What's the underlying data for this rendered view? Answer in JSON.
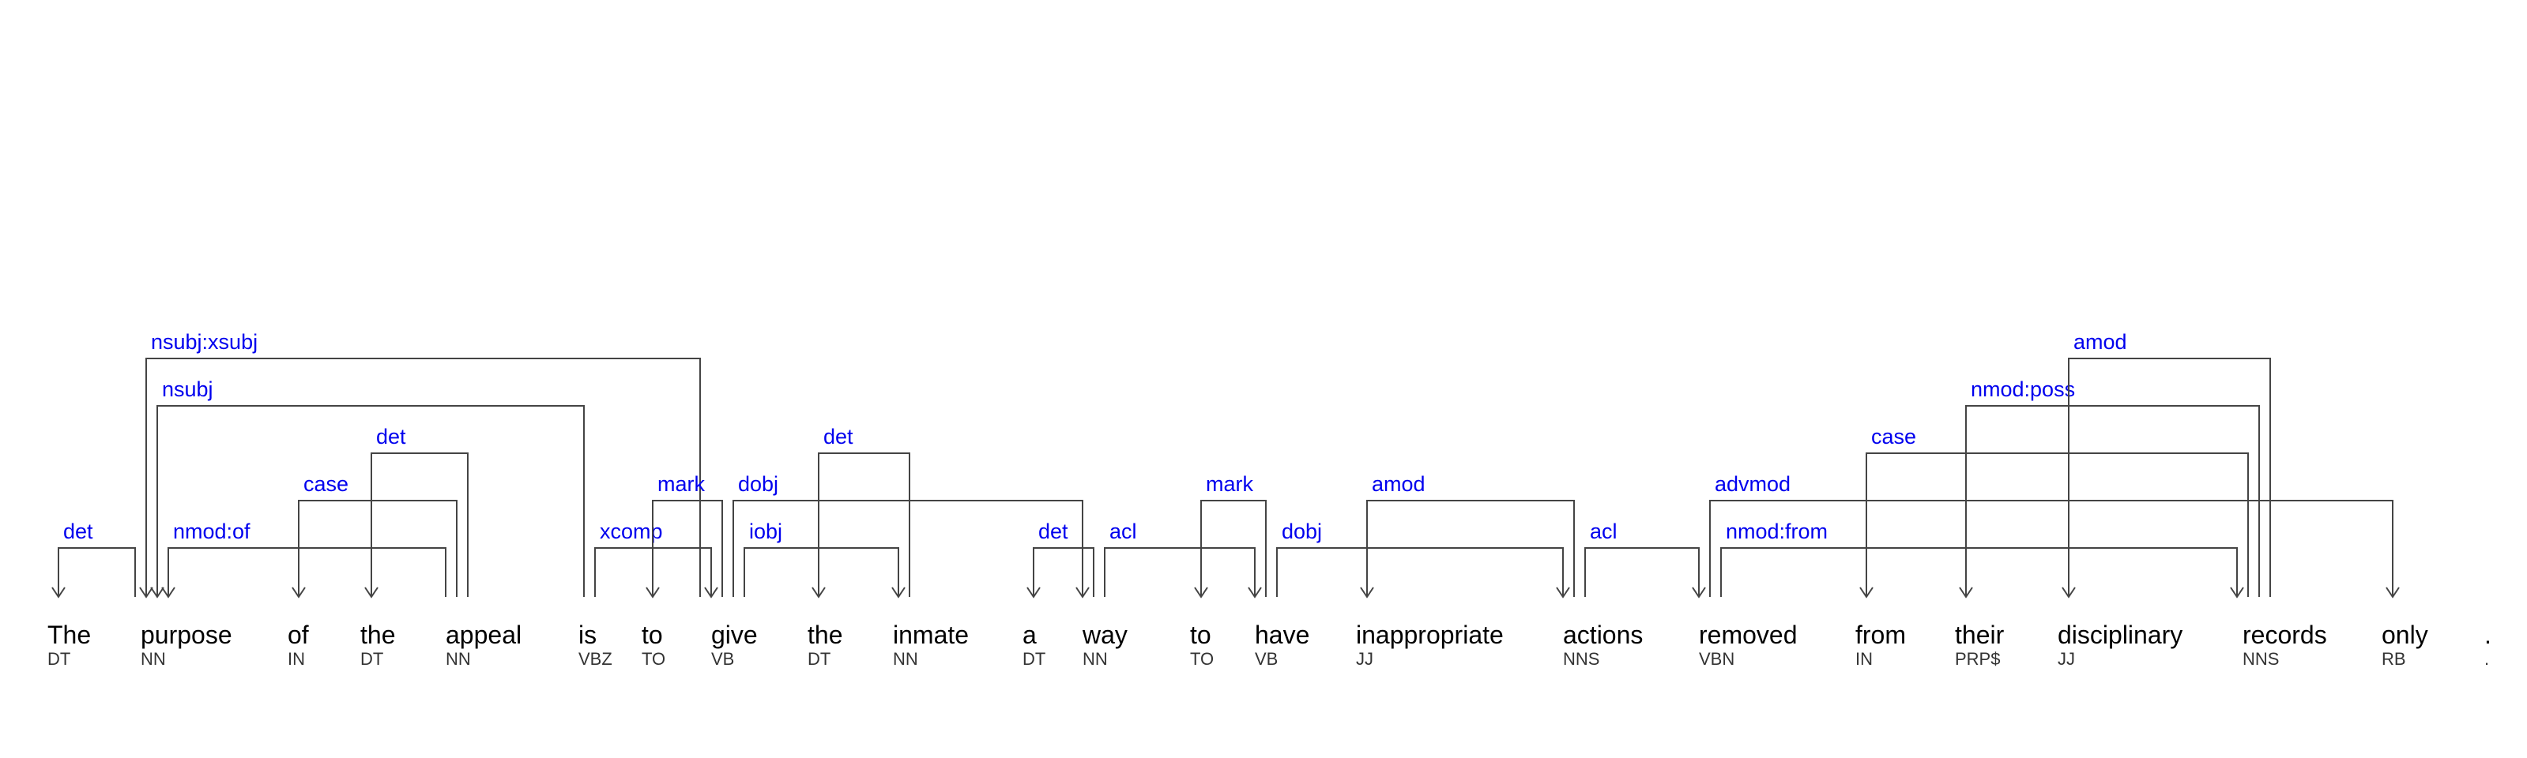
{
  "tokens": [
    {
      "word": "The",
      "tag": "DT"
    },
    {
      "word": "purpose",
      "tag": "NN"
    },
    {
      "word": "of",
      "tag": "IN"
    },
    {
      "word": "the",
      "tag": "DT"
    },
    {
      "word": "appeal",
      "tag": "NN"
    },
    {
      "word": "is",
      "tag": "VBZ"
    },
    {
      "word": "to",
      "tag": "TO"
    },
    {
      "word": "give",
      "tag": "VB"
    },
    {
      "word": "the",
      "tag": "DT"
    },
    {
      "word": "inmate",
      "tag": "NN"
    },
    {
      "word": "a",
      "tag": "DT"
    },
    {
      "word": "way",
      "tag": "NN"
    },
    {
      "word": "to",
      "tag": "TO"
    },
    {
      "word": "have",
      "tag": "VB"
    },
    {
      "word": "inappropriate",
      "tag": "JJ"
    },
    {
      "word": "actions",
      "tag": "NNS"
    },
    {
      "word": "removed",
      "tag": "VBN"
    },
    {
      "word": "from",
      "tag": "IN"
    },
    {
      "word": "their",
      "tag": "PRP$"
    },
    {
      "word": "disciplinary",
      "tag": "JJ"
    },
    {
      "word": "records",
      "tag": "NNS"
    },
    {
      "word": "only",
      "tag": "RB"
    },
    {
      "word": ".",
      "tag": "."
    }
  ],
  "arcs": [
    {
      "label": "det",
      "head": 1,
      "dep": 0,
      "level": 1
    },
    {
      "label": "nmod:of",
      "head": 4,
      "dep": 1,
      "level": 1
    },
    {
      "label": "case",
      "head": 4,
      "dep": 2,
      "level": 2
    },
    {
      "label": "det",
      "head": 4,
      "dep": 3,
      "level": 3
    },
    {
      "label": "nsubj",
      "head": 5,
      "dep": 1,
      "level": 4
    },
    {
      "label": "nsubj:xsubj",
      "head": 7,
      "dep": 1,
      "level": 5
    },
    {
      "label": "xcomp",
      "head": 5,
      "dep": 7,
      "level": 1
    },
    {
      "label": "mark",
      "head": 7,
      "dep": 6,
      "level": 2
    },
    {
      "label": "iobj",
      "head": 7,
      "dep": 9,
      "level": 1
    },
    {
      "label": "dobj",
      "head": 7,
      "dep": 11,
      "level": 2
    },
    {
      "label": "det",
      "head": 9,
      "dep": 8,
      "level": 3
    },
    {
      "label": "det",
      "head": 11,
      "dep": 10,
      "level": 1
    },
    {
      "label": "acl",
      "head": 11,
      "dep": 13,
      "level": 1
    },
    {
      "label": "mark",
      "head": 13,
      "dep": 12,
      "level": 2
    },
    {
      "label": "dobj",
      "head": 13,
      "dep": 15,
      "level": 1
    },
    {
      "label": "amod",
      "head": 15,
      "dep": 14,
      "level": 2
    },
    {
      "label": "acl",
      "head": 15,
      "dep": 16,
      "level": 1
    },
    {
      "label": "nmod:from",
      "head": 16,
      "dep": 20,
      "level": 1
    },
    {
      "label": "advmod",
      "head": 16,
      "dep": 21,
      "level": 2
    },
    {
      "label": "case",
      "head": 20,
      "dep": 17,
      "level": 3
    },
    {
      "label": "nmod:poss",
      "head": 20,
      "dep": 18,
      "level": 4
    },
    {
      "label": "amod",
      "head": 20,
      "dep": 19,
      "level": 5
    }
  ]
}
